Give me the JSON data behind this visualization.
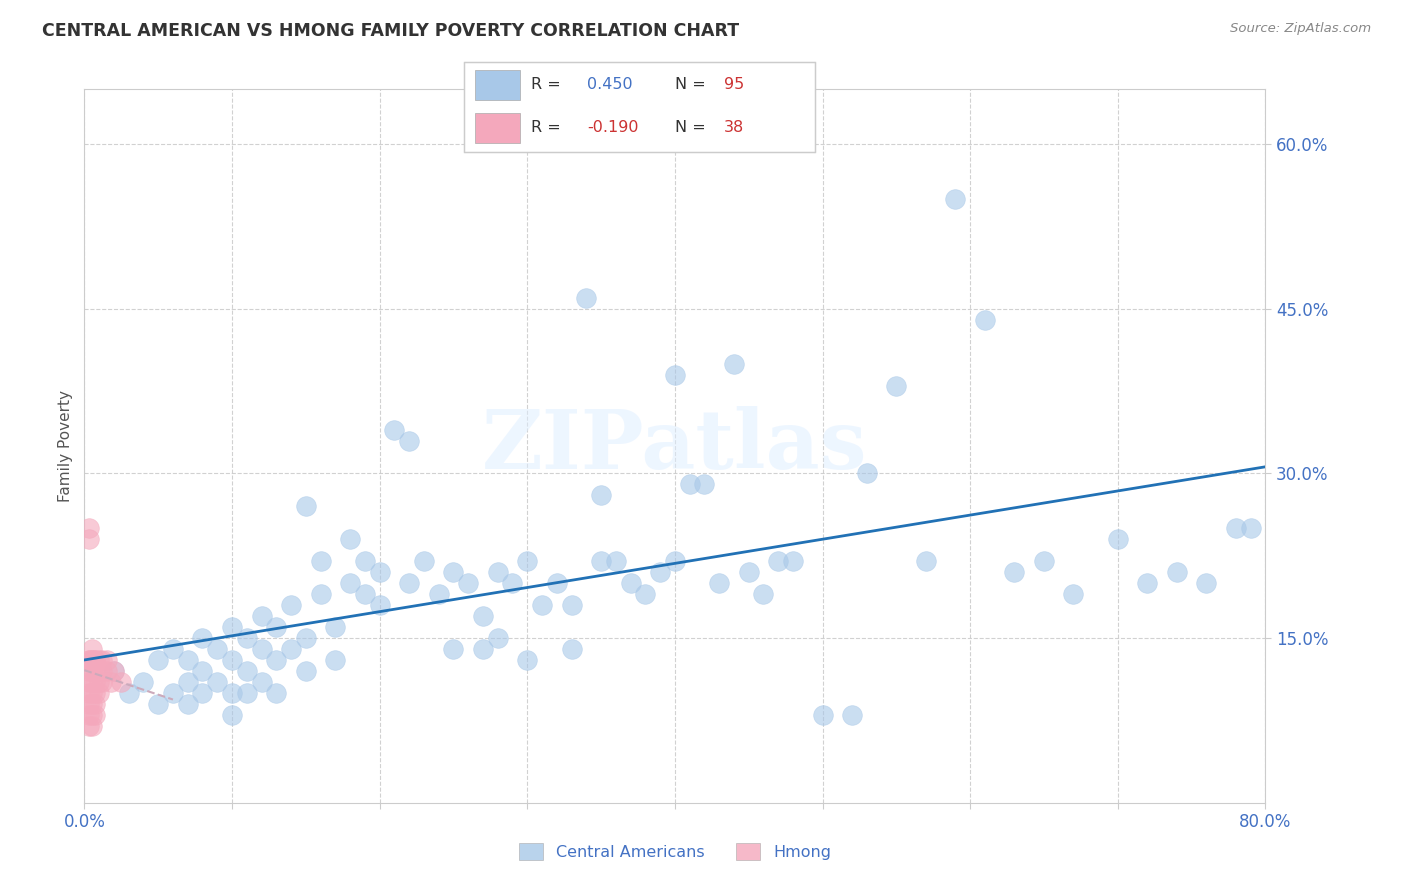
{
  "title": "CENTRAL AMERICAN VS HMONG FAMILY POVERTY CORRELATION CHART",
  "source": "Source: ZipAtlas.com",
  "ylabel": "Family Poverty",
  "r_blue": 0.45,
  "n_blue": 95,
  "r_pink": -0.19,
  "n_pink": 38,
  "blue_color": "#a8c8e8",
  "pink_color": "#f4a8bc",
  "blue_line_color": "#2171b5",
  "pink_line_color": "#ccaabb",
  "watermark": "ZIPatlas",
  "blue_scatter_x": [
    0.02,
    0.03,
    0.04,
    0.05,
    0.05,
    0.06,
    0.06,
    0.07,
    0.07,
    0.07,
    0.08,
    0.08,
    0.08,
    0.09,
    0.09,
    0.1,
    0.1,
    0.1,
    0.1,
    0.11,
    0.11,
    0.11,
    0.12,
    0.12,
    0.12,
    0.13,
    0.13,
    0.13,
    0.14,
    0.14,
    0.15,
    0.15,
    0.15,
    0.16,
    0.16,
    0.17,
    0.17,
    0.18,
    0.18,
    0.19,
    0.19,
    0.2,
    0.2,
    0.21,
    0.22,
    0.22,
    0.23,
    0.24,
    0.25,
    0.25,
    0.26,
    0.27,
    0.27,
    0.28,
    0.28,
    0.29,
    0.3,
    0.3,
    0.31,
    0.32,
    0.33,
    0.33,
    0.34,
    0.35,
    0.35,
    0.36,
    0.37,
    0.38,
    0.39,
    0.4,
    0.4,
    0.41,
    0.42,
    0.43,
    0.44,
    0.45,
    0.46,
    0.47,
    0.48,
    0.5,
    0.52,
    0.53,
    0.55,
    0.57,
    0.59,
    0.61,
    0.63,
    0.65,
    0.67,
    0.7,
    0.72,
    0.74,
    0.76,
    0.78,
    0.79
  ],
  "blue_scatter_y": [
    0.12,
    0.1,
    0.11,
    0.13,
    0.09,
    0.14,
    0.1,
    0.13,
    0.11,
    0.09,
    0.15,
    0.12,
    0.1,
    0.14,
    0.11,
    0.16,
    0.13,
    0.1,
    0.08,
    0.15,
    0.12,
    0.1,
    0.17,
    0.14,
    0.11,
    0.16,
    0.13,
    0.1,
    0.18,
    0.14,
    0.27,
    0.15,
    0.12,
    0.22,
    0.19,
    0.16,
    0.13,
    0.24,
    0.2,
    0.22,
    0.19,
    0.21,
    0.18,
    0.34,
    0.33,
    0.2,
    0.22,
    0.19,
    0.21,
    0.14,
    0.2,
    0.17,
    0.14,
    0.21,
    0.15,
    0.2,
    0.22,
    0.13,
    0.18,
    0.2,
    0.18,
    0.14,
    0.46,
    0.28,
    0.22,
    0.22,
    0.2,
    0.19,
    0.21,
    0.39,
    0.22,
    0.29,
    0.29,
    0.2,
    0.4,
    0.21,
    0.19,
    0.22,
    0.22,
    0.08,
    0.08,
    0.3,
    0.38,
    0.22,
    0.55,
    0.44,
    0.21,
    0.22,
    0.19,
    0.24,
    0.2,
    0.21,
    0.2,
    0.25,
    0.25
  ],
  "pink_scatter_x": [
    0.003,
    0.003,
    0.003,
    0.003,
    0.003,
    0.003,
    0.003,
    0.003,
    0.003,
    0.003,
    0.005,
    0.005,
    0.005,
    0.005,
    0.005,
    0.005,
    0.005,
    0.005,
    0.005,
    0.007,
    0.007,
    0.007,
    0.007,
    0.007,
    0.007,
    0.007,
    0.01,
    0.01,
    0.01,
    0.01,
    0.012,
    0.012,
    0.012,
    0.015,
    0.015,
    0.018,
    0.02,
    0.025
  ],
  "pink_scatter_y": [
    0.13,
    0.12,
    0.11,
    0.1,
    0.09,
    0.08,
    0.07,
    0.13,
    0.25,
    0.24,
    0.13,
    0.12,
    0.11,
    0.1,
    0.09,
    0.08,
    0.07,
    0.13,
    0.14,
    0.13,
    0.12,
    0.11,
    0.1,
    0.09,
    0.08,
    0.13,
    0.13,
    0.12,
    0.11,
    0.1,
    0.12,
    0.11,
    0.13,
    0.12,
    0.13,
    0.11,
    0.12,
    0.11
  ],
  "xlim": [
    0.0,
    0.8
  ],
  "ylim": [
    0.0,
    0.65
  ],
  "yticks": [
    0.15,
    0.3,
    0.45,
    0.6
  ],
  "xticks": [
    0.0,
    0.1,
    0.2,
    0.3,
    0.4,
    0.5,
    0.6,
    0.7,
    0.8
  ],
  "x_label_show": [
    0,
    8
  ],
  "grid_color": "#cccccc",
  "bg_color": "#ffffff",
  "tick_color": "#4472c4",
  "legend_r_color": "#333333",
  "legend_val_color": "#4472c4",
  "legend_n_color": "#333333",
  "legend_nval_color": "#cc3333"
}
